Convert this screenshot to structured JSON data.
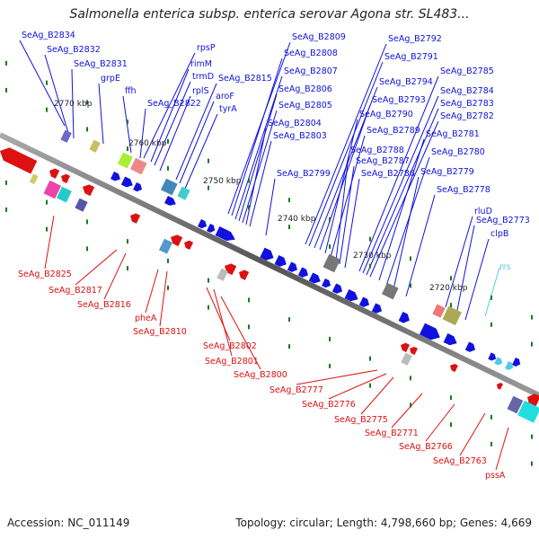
{
  "title": "Salmonella enterica subsp. enterica serovar Agona str. SL483...",
  "footer": {
    "accession": "Accession: NC_011149",
    "topology": "Topology: circular; Length: 4,798,660 bp; Genes: 4,669"
  },
  "colors": {
    "forward": "#1111dd",
    "reverse": "#dd1111",
    "rrna": "#55c8e8",
    "backbone": "#777777",
    "tick": "#1a7a1a"
  },
  "scale": {
    "unit": "kbp",
    "ticks": [
      {
        "label": "2770 kbp"
      },
      {
        "label": "2760 kbp"
      },
      {
        "label": "2750 kbp"
      },
      {
        "label": "2740 kbp"
      },
      {
        "label": "2730 kbp"
      },
      {
        "label": "2720 kbp"
      }
    ]
  },
  "forward_labels": [
    "SeAg_B2834",
    "SeAg_B2832",
    "SeAg_B2831",
    "grpE",
    "ffh",
    "rpsP",
    "rimM",
    "trmD",
    "rplS",
    "SeAg_B2822",
    "SeAg_B2815",
    "aroF",
    "tyrA",
    "SeAg_B2809",
    "SeAg_B2808",
    "SeAg_B2807",
    "SeAg_B2806",
    "SeAg_B2805",
    "SeAg_B2804",
    "SeAg_B2803",
    "SeAg_B2799",
    "SeAg_B2792",
    "SeAg_B2791",
    "SeAg_B2794",
    "SeAg_B2793",
    "SeAg_B2790",
    "SeAg_B2789",
    "SeAg_B2788",
    "SeAg_B2787",
    "SeAg_B2786",
    "SeAg_B2785",
    "SeAg_B2784",
    "SeAg_B2783",
    "SeAg_B2782",
    "SeAg_B2781",
    "SeAg_B2780",
    "SeAg_B2779",
    "SeAg_B2778",
    "rluD",
    "SeAg_B2773",
    "clpB"
  ],
  "rrna_labels": [
    "rrs"
  ],
  "reverse_labels": [
    "SeAg_B2825",
    "SeAg_B2817",
    "SeAg_B2816",
    "pheA",
    "SeAg_B2810",
    "SeAg_B2802",
    "SeAg_B2801",
    "SeAg_B2800",
    "SeAg_B2777",
    "SeAg_B2776",
    "SeAg_B2775",
    "SeAg_B2771",
    "SeAg_B2766",
    "SeAg_B2763",
    "pssA"
  ]
}
